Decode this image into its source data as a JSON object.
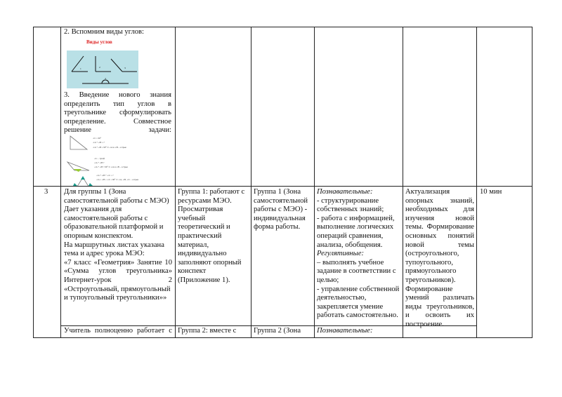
{
  "row1": {
    "col2_heading": "2. Вспомним виды углов:",
    "figure_title": "Виды углов",
    "figure_angle_labels": [
      "1",
      "2",
      "3",
      "4"
    ],
    "col2_lines": [
      "3. Введение нового знания",
      "определить тип углов в",
      "треугольнике сформулировать",
      "определение. Совместное",
      "решение задачи:"
    ],
    "triangle_figure_text": [
      "∠C = 90°",
      "∠A + ∠B = ?",
      "∠A + ∠B = 90° ⇒ ∠A и ∠B – острые",
      "∠C – тупой",
      "∠A + ∠B ?",
      "∠A + ∠B < 90° ⇒ ∠A и ∠B – острые",
      "∠A + ∠B + ∠C = ?",
      "∠A = ∠B = ∠C = 60° ⇒ ∠A, ∠B, ∠C – острые"
    ]
  },
  "row2": {
    "number": "3",
    "col2_lines": [
      "Для группы 1 (Зона",
      "самостоятельной работы с МЭО)",
      "Дает указания для",
      "самостоятельной работы с",
      "образовательной платформой и",
      "опорным конспектом.",
      "На маршрутных листах указана",
      "тема и адрес урока МЭО:",
      "«7 класс «Геометрия» Занятие 10",
      "«Сумма углов треугольника»",
      "Интернет-урок 2",
      "«Остроугольный, прямоугольный",
      "и тупоугольный треугольники»»"
    ],
    "col3_lines": [
      "Группа 1: работают с",
      "ресурсами МЭО.",
      "Просматривая",
      "учебный",
      "теоретический и",
      "практический",
      "материал,",
      "индивидуально",
      "заполняют опорный",
      "конспект",
      "(Приложение 1)."
    ],
    "col4_lines": [
      "Группа 1 (Зона",
      "самостоятельной",
      "работы с МЭО) -",
      "индивидуальная",
      "форма работы."
    ],
    "col5_lines": [
      {
        "text": "Познавательные:",
        "italic": true
      },
      {
        "text": "- структурирование",
        "italic": false
      },
      {
        "text": "собственных знаний;",
        "italic": false
      },
      {
        "text": "- работа с информацией,",
        "italic": false
      },
      {
        "text": "выполнение логических",
        "italic": false
      },
      {
        "text": "операций сравнения,",
        "italic": false
      },
      {
        "text": "анализа, обобщения.",
        "italic": false
      },
      {
        "text": "Регулятивные:",
        "italic": true
      },
      {
        "text": "– выполнять учебное",
        "italic": false
      },
      {
        "text": "задание в соответствии с",
        "italic": false
      },
      {
        "text": "целью;",
        "italic": false
      },
      {
        "text": "- управление собственной",
        "italic": false
      },
      {
        "text": "деятельностью,",
        "italic": false
      },
      {
        "text": "закрепляется умение",
        "italic": false
      },
      {
        "text": "работать самостоятельно.",
        "italic": false
      }
    ],
    "col6_lines": [
      "Актуализация",
      "опорных знаний,",
      "необходимых для",
      "изучения новой",
      "темы. Формирование",
      "основных понятий",
      "новой темы",
      "(остроугольного,",
      "тупоугольного,",
      "прямоугольного",
      "треугольников).",
      "Формирование",
      "умений различать",
      "виды треугольников,",
      "и освоить их",
      "построение."
    ],
    "col7_time": "10 мин"
  },
  "row3": {
    "col2": "Учитель полноценно работает с",
    "col3": "Группа 2: вместе с",
    "col4": "Группа 2 (Зона",
    "col5": "Познавательные:"
  }
}
